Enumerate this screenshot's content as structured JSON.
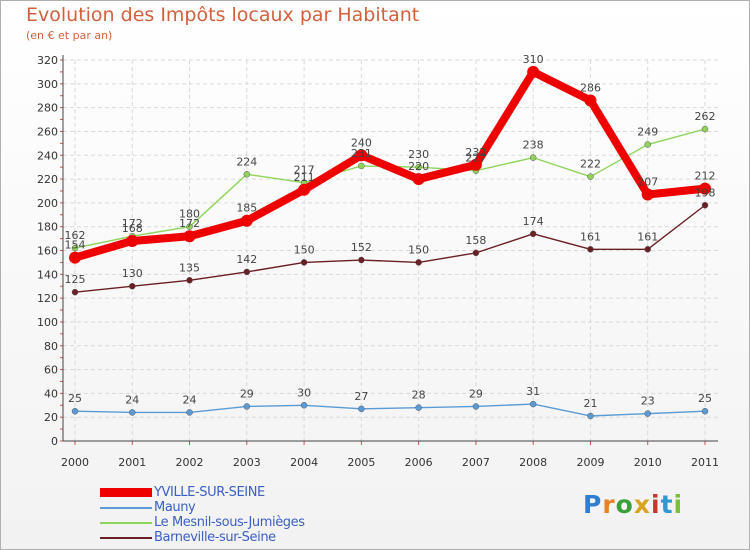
{
  "header": {
    "title": "Evolution des Impôts locaux par Habitant",
    "subtitle": "(en € et par an)"
  },
  "colors": {
    "title": "#d2603e",
    "legend_text": "#3b5fc4",
    "grid": "#d9d9d9",
    "axis_ticks": "#d05050"
  },
  "logo": {
    "text": "Proxiti",
    "colors": [
      "#2e7fd1",
      "#e5832a",
      "#3aa03a",
      "#d9a520",
      "#cc3333",
      "#2e9ad1",
      "#7bbf3a"
    ]
  },
  "chart_data": {
    "type": "line",
    "title": "Evolution des Impôts locaux par Habitant",
    "subtitle": "(en € et par an)",
    "categories": [
      "2000",
      "2001",
      "2002",
      "2003",
      "2004",
      "2005",
      "2006",
      "2007",
      "2008",
      "2009",
      "2010",
      "2011"
    ],
    "ylim": [
      0,
      320
    ],
    "yticks": [
      0,
      20,
      40,
      60,
      80,
      100,
      120,
      140,
      160,
      180,
      200,
      220,
      240,
      260,
      280,
      300,
      320
    ],
    "grid": true,
    "legend_position": "bottom-left",
    "series": [
      {
        "name": "YVILLE-SUR-SEINE",
        "color": "#ee0000",
        "values": [
          154,
          168,
          172,
          185,
          211,
          240,
          220,
          232,
          310,
          286,
          207,
          212
        ],
        "labels": [
          "154",
          "168",
          "172",
          "185",
          "211",
          "240",
          "220",
          "232",
          "310",
          "286",
          "207",
          "212"
        ]
      },
      {
        "name": "Mauny",
        "color": "#5b9bd5",
        "values": [
          25,
          24,
          24,
          29,
          30,
          27,
          28,
          29,
          31,
          21,
          23,
          25
        ],
        "labels": [
          "25",
          "24",
          "24",
          "29",
          "30",
          "27",
          "28",
          "29",
          "31",
          "21",
          "23",
          "25"
        ]
      },
      {
        "name": "Le Mesnil-sous-Jumièges",
        "color": "#8fd45a",
        "values": [
          162,
          172,
          180,
          224,
          217,
          231,
          230,
          227,
          238,
          222,
          249,
          262
        ],
        "labels": [
          "162",
          "172",
          "180",
          "224",
          "217",
          "231",
          "230",
          "227",
          "238",
          "222",
          "249",
          "262"
        ]
      },
      {
        "name": "Barneville-sur-Seine",
        "color": "#6b1f24",
        "values": [
          125,
          130,
          135,
          142,
          150,
          152,
          150,
          158,
          174,
          161,
          161,
          198
        ],
        "labels": [
          "125",
          "130",
          "135",
          "142",
          "150",
          "152",
          "150",
          "158",
          "174",
          "161",
          "161",
          "198"
        ]
      }
    ]
  }
}
